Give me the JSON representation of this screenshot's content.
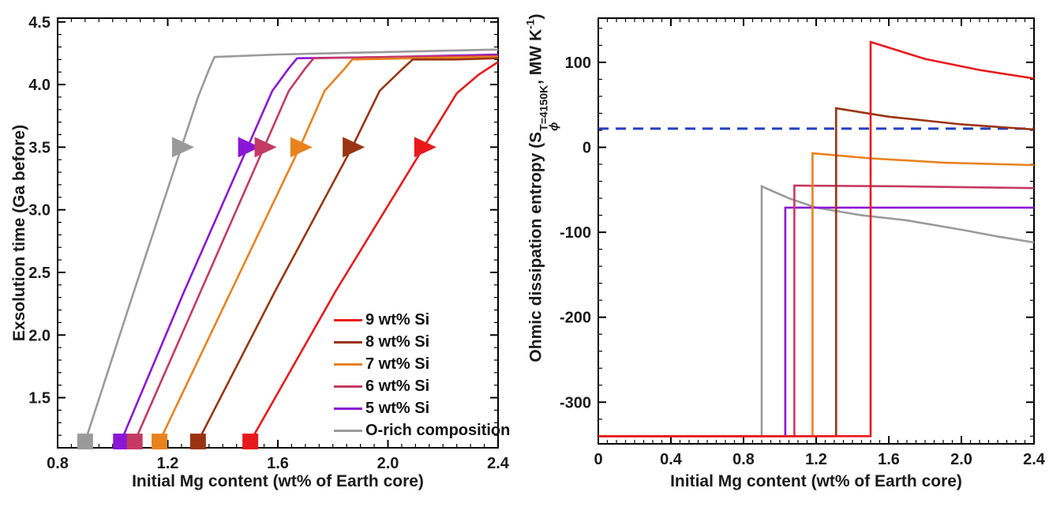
{
  "figure": {
    "background": "#ffffff",
    "axis_color": "#000000",
    "text_color": "#1a1a1a"
  },
  "chart_data": [
    {
      "type": "line",
      "title": "",
      "xlabel": "Initial Mg content (wt% of Earth core)",
      "ylabel": "Exsolution time (Ga before)",
      "xlim": [
        0.8,
        2.4
      ],
      "ylim": [
        1.1,
        4.53
      ],
      "grid": false,
      "legend_position": "inside lower right",
      "xticks": [
        0.8,
        1.2,
        1.6,
        2.0,
        2.4
      ],
      "xtick_labels": [
        "0.8",
        "1.2",
        "1.6",
        "2.0",
        "2.4"
      ],
      "yticks": [
        1.5,
        2.0,
        2.5,
        3.0,
        3.5,
        4.0,
        4.5
      ],
      "ytick_labels": [
        "1.5",
        "2.0",
        "2.5",
        "3.0",
        "3.5",
        "4.0",
        "4.5"
      ],
      "x_minor_step": 0.05,
      "y_minor_step": 0.1,
      "series": [
        {
          "name": "O-rich composition",
          "color": "#9a9a9a",
          "points": [
            [
              0.9,
              1.15
            ],
            [
              1.07,
              2.3
            ],
            [
              1.25,
              3.5
            ],
            [
              1.31,
              3.9
            ],
            [
              1.35,
              4.12
            ],
            [
              1.37,
              4.22
            ],
            [
              1.6,
              4.24
            ],
            [
              2.0,
              4.26
            ],
            [
              2.4,
              4.28
            ]
          ],
          "square_marker": [
            0.9,
            1.15
          ],
          "triangle_marker": [
            1.25,
            3.5
          ]
        },
        {
          "name": "5 wt% Si",
          "color": "#8b17d6",
          "points": [
            [
              1.03,
              1.15
            ],
            [
              1.26,
              2.35
            ],
            [
              1.49,
              3.5
            ],
            [
              1.58,
              3.95
            ],
            [
              1.64,
              4.13
            ],
            [
              1.67,
              4.21
            ],
            [
              2.0,
              4.22
            ],
            [
              2.4,
              4.24
            ]
          ],
          "square_marker": [
            1.03,
            1.15
          ],
          "triangle_marker": [
            1.49,
            3.5
          ]
        },
        {
          "name": "6 wt% Si",
          "color": "#c43a64",
          "points": [
            [
              1.08,
              1.15
            ],
            [
              1.32,
              2.35
            ],
            [
              1.55,
              3.5
            ],
            [
              1.64,
              3.95
            ],
            [
              1.7,
              4.13
            ],
            [
              1.73,
              4.21
            ],
            [
              2.0,
              4.22
            ],
            [
              2.4,
              4.23
            ]
          ],
          "square_marker": [
            1.08,
            1.15
          ],
          "triangle_marker": [
            1.55,
            3.5
          ]
        },
        {
          "name": "7 wt% Si",
          "color": "#e8821e",
          "points": [
            [
              1.17,
              1.15
            ],
            [
              1.43,
              2.35
            ],
            [
              1.68,
              3.5
            ],
            [
              1.77,
              3.95
            ],
            [
              1.84,
              4.12
            ],
            [
              1.87,
              4.2
            ],
            [
              2.1,
              4.21
            ],
            [
              2.4,
              4.22
            ]
          ],
          "square_marker": [
            1.17,
            1.15
          ],
          "triangle_marker": [
            1.68,
            3.5
          ]
        },
        {
          "name": "8 wt% Si",
          "color": "#9a3412",
          "points": [
            [
              1.31,
              1.15
            ],
            [
              1.59,
              2.35
            ],
            [
              1.87,
              3.5
            ],
            [
              1.97,
              3.95
            ],
            [
              2.05,
              4.12
            ],
            [
              2.09,
              4.2
            ],
            [
              2.25,
              4.2
            ],
            [
              2.4,
              4.21
            ]
          ],
          "square_marker": [
            1.31,
            1.15
          ],
          "triangle_marker": [
            1.87,
            3.5
          ]
        },
        {
          "name": "9 wt% Si",
          "color": "#e8191c",
          "points": [
            [
              1.5,
              1.15
            ],
            [
              1.81,
              2.35
            ],
            [
              2.13,
              3.5
            ],
            [
              2.25,
              3.93
            ],
            [
              2.33,
              4.08
            ],
            [
              2.4,
              4.18
            ]
          ],
          "square_marker": [
            1.5,
            1.15
          ],
          "triangle_marker": [
            2.13,
            3.5
          ]
        }
      ]
    },
    {
      "type": "line",
      "title": "",
      "xlabel": "Initial Mg content (wt% of Earth core)",
      "ylabel_parts": {
        "pre": "Ohmic dissipation entropy (S",
        "sup": "T=4150K",
        "sub": "ϕ",
        "mid": ", MW K",
        "sup2": "-1",
        "post": ")"
      },
      "xlim": [
        0,
        2.4
      ],
      "ylim": [
        -349,
        152
      ],
      "grid": false,
      "xticks": [
        0,
        0.4,
        0.8,
        1.2,
        1.6,
        2.0,
        2.4
      ],
      "xtick_labels": [
        "0",
        "0.4",
        "0.8",
        "1.2",
        "1.6",
        "2.0",
        "2.4"
      ],
      "yticks": [
        -300,
        -200,
        -100,
        0,
        100
      ],
      "ytick_labels": [
        "-300",
        "-200",
        "-100",
        "0",
        "100"
      ],
      "x_minor_step": 0.05,
      "y_minor_step": 20,
      "dashed_reference": {
        "y": 22,
        "color": "#2140c4",
        "style": "dashed"
      },
      "series": [
        {
          "name": "O-rich composition",
          "color": "#9a9a9a",
          "points": [
            [
              0,
              -340
            ],
            [
              0.9,
              -340
            ],
            [
              0.9,
              -46
            ],
            [
              1.05,
              -60
            ],
            [
              1.2,
              -71
            ],
            [
              1.45,
              -80
            ],
            [
              1.7,
              -86
            ],
            [
              2.0,
              -97
            ],
            [
              2.2,
              -105
            ],
            [
              2.4,
              -112
            ]
          ]
        },
        {
          "name": "5 wt% Si",
          "color": "#8b17d6",
          "points": [
            [
              0,
              -340
            ],
            [
              1.03,
              -340
            ],
            [
              1.03,
              -71
            ],
            [
              1.7,
              -71
            ],
            [
              2.4,
              -71
            ]
          ]
        },
        {
          "name": "6 wt% Si",
          "color": "#c43a64",
          "points": [
            [
              0,
              -340
            ],
            [
              1.08,
              -340
            ],
            [
              1.08,
              -45
            ],
            [
              1.7,
              -46
            ],
            [
              2.4,
              -48
            ]
          ]
        },
        {
          "name": "7 wt% Si",
          "color": "#e8821e",
          "points": [
            [
              0,
              -340
            ],
            [
              1.18,
              -340
            ],
            [
              1.18,
              -7
            ],
            [
              1.5,
              -13
            ],
            [
              1.9,
              -18
            ],
            [
              2.4,
              -21
            ]
          ]
        },
        {
          "name": "8 wt% Si",
          "color": "#9a3412",
          "points": [
            [
              0,
              -340
            ],
            [
              1.31,
              -340
            ],
            [
              1.31,
              46
            ],
            [
              1.6,
              36
            ],
            [
              2.0,
              27
            ],
            [
              2.4,
              21
            ]
          ]
        },
        {
          "name": "9 wt% Si",
          "color": "#e8191c",
          "points": [
            [
              0,
              -340
            ],
            [
              1.5,
              -340
            ],
            [
              1.5,
              124
            ],
            [
              1.8,
              104
            ],
            [
              2.1,
              91
            ],
            [
              2.4,
              81
            ]
          ]
        }
      ]
    }
  ]
}
